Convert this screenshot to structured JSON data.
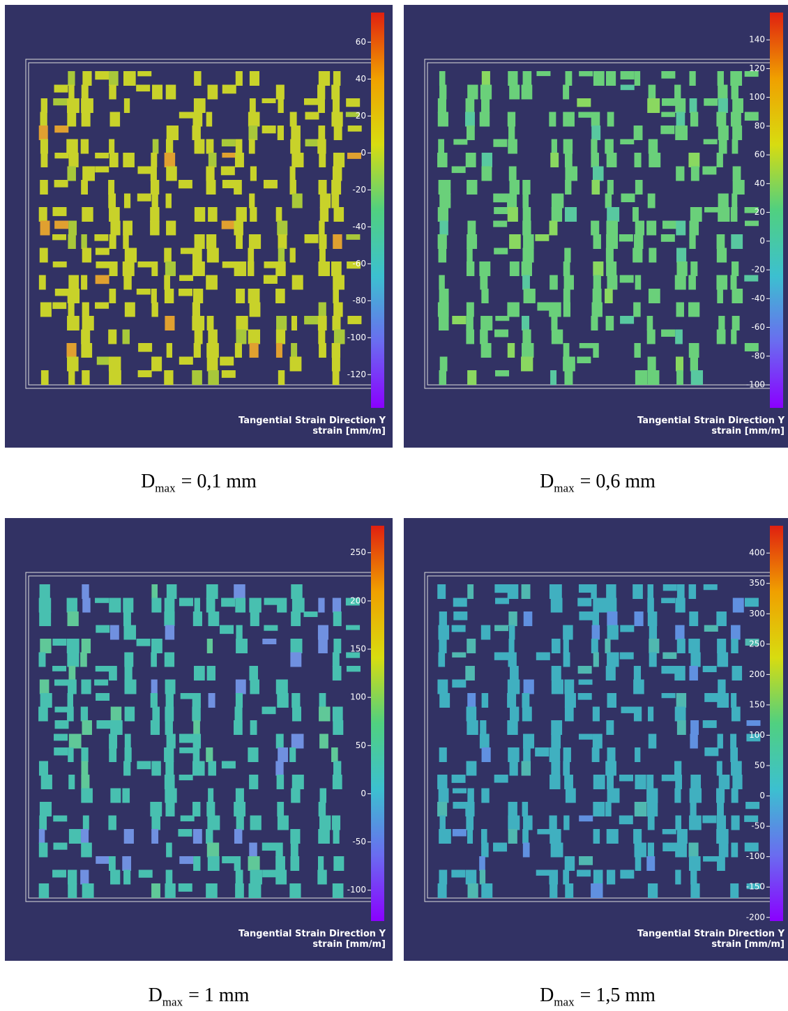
{
  "panels": [
    {
      "title": "Tangential Strain Direction Y",
      "unit": "strain [mm/m]",
      "range": [
        -138,
        76
      ],
      "ticks": [
        60,
        40,
        20,
        0,
        -20,
        -40,
        -60,
        -80,
        -100,
        -120
      ],
      "caption": {
        "symbol": "D",
        "subscript": "max",
        "rest": "= 0,1 mm"
      }
    },
    {
      "title": "Tangential Strain Direction Y",
      "unit": "strain [mm/m]",
      "range": [
        -116,
        159
      ],
      "ticks": [
        140,
        120,
        100,
        80,
        60,
        40,
        20,
        0,
        -20,
        -40,
        -60,
        -80,
        -100
      ],
      "caption": {
        "symbol": "D",
        "subscript": "max",
        "rest": "= 0,6 mm"
      }
    },
    {
      "title": "Tangential Strain Direction Y",
      "unit": "strain [mm/m]",
      "range": [
        -132,
        278
      ],
      "ticks": [
        250,
        200,
        150,
        100,
        50,
        0,
        -50,
        -100
      ],
      "caption": {
        "symbol": "D",
        "subscript": "max",
        "rest": "= 1 mm"
      }
    },
    {
      "title": "Tangential Strain Direction Y",
      "unit": "strain [mm/m]",
      "range": [
        -206,
        445
      ],
      "ticks": [
        400,
        350,
        300,
        250,
        200,
        150,
        100,
        50,
        0,
        -50,
        -100,
        -150,
        -200
      ],
      "caption": {
        "symbol": "D",
        "subscript": "max",
        "rest": "= 1,5 mm"
      }
    }
  ]
}
